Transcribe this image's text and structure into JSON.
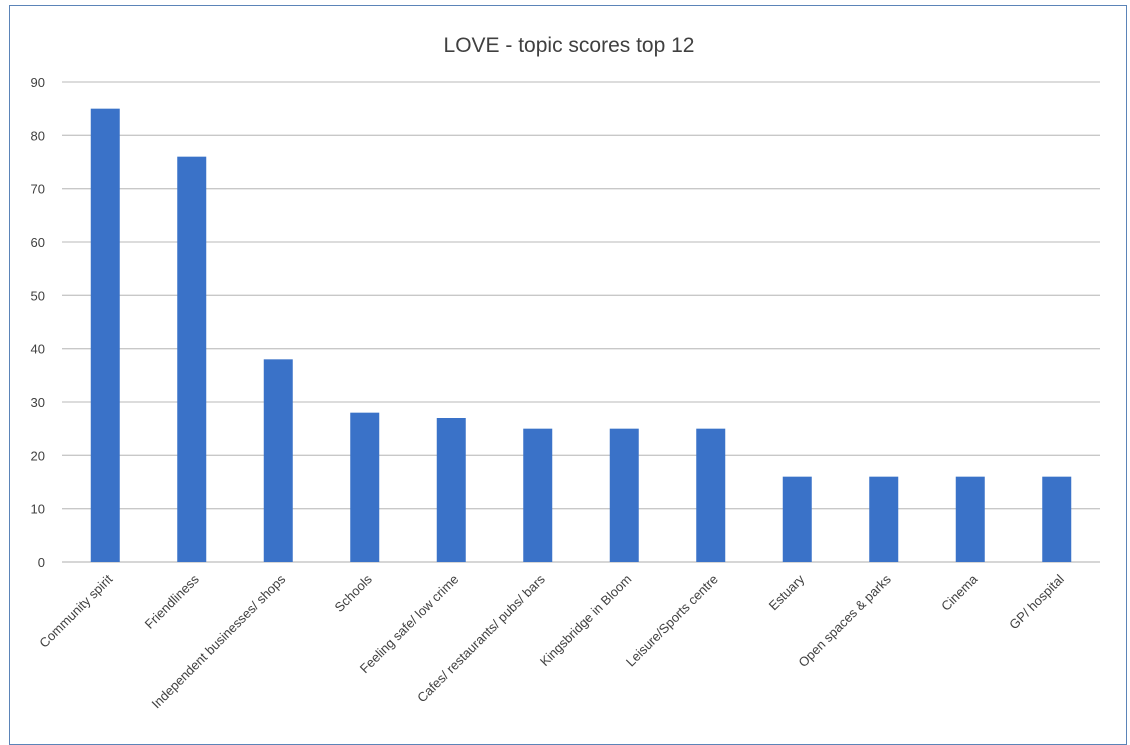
{
  "chart_data": {
    "type": "bar",
    "title": "LOVE - topic scores top 12",
    "xlabel": "",
    "ylabel": "",
    "categories": [
      "Community spirit",
      "Friendliness",
      "Independent businesses/ shops",
      "Schools",
      "Feeling safe/ low crime",
      "Cafes/ restaurants/ pubs/ bars",
      "Kingsbridge in Bloom",
      "Leisure/Sports centre",
      "Estuary",
      "Open spaces & parks",
      "Cinema",
      "GP/ hospital"
    ],
    "values": [
      85,
      76,
      38,
      28,
      27,
      25,
      25,
      25,
      16,
      16,
      16,
      16
    ],
    "ylim": [
      0,
      90
    ],
    "yticks": [
      0,
      10,
      20,
      30,
      40,
      50,
      60,
      70,
      80,
      90
    ],
    "grid": true,
    "legend": "none",
    "bar_color": "#3a72c8"
  }
}
